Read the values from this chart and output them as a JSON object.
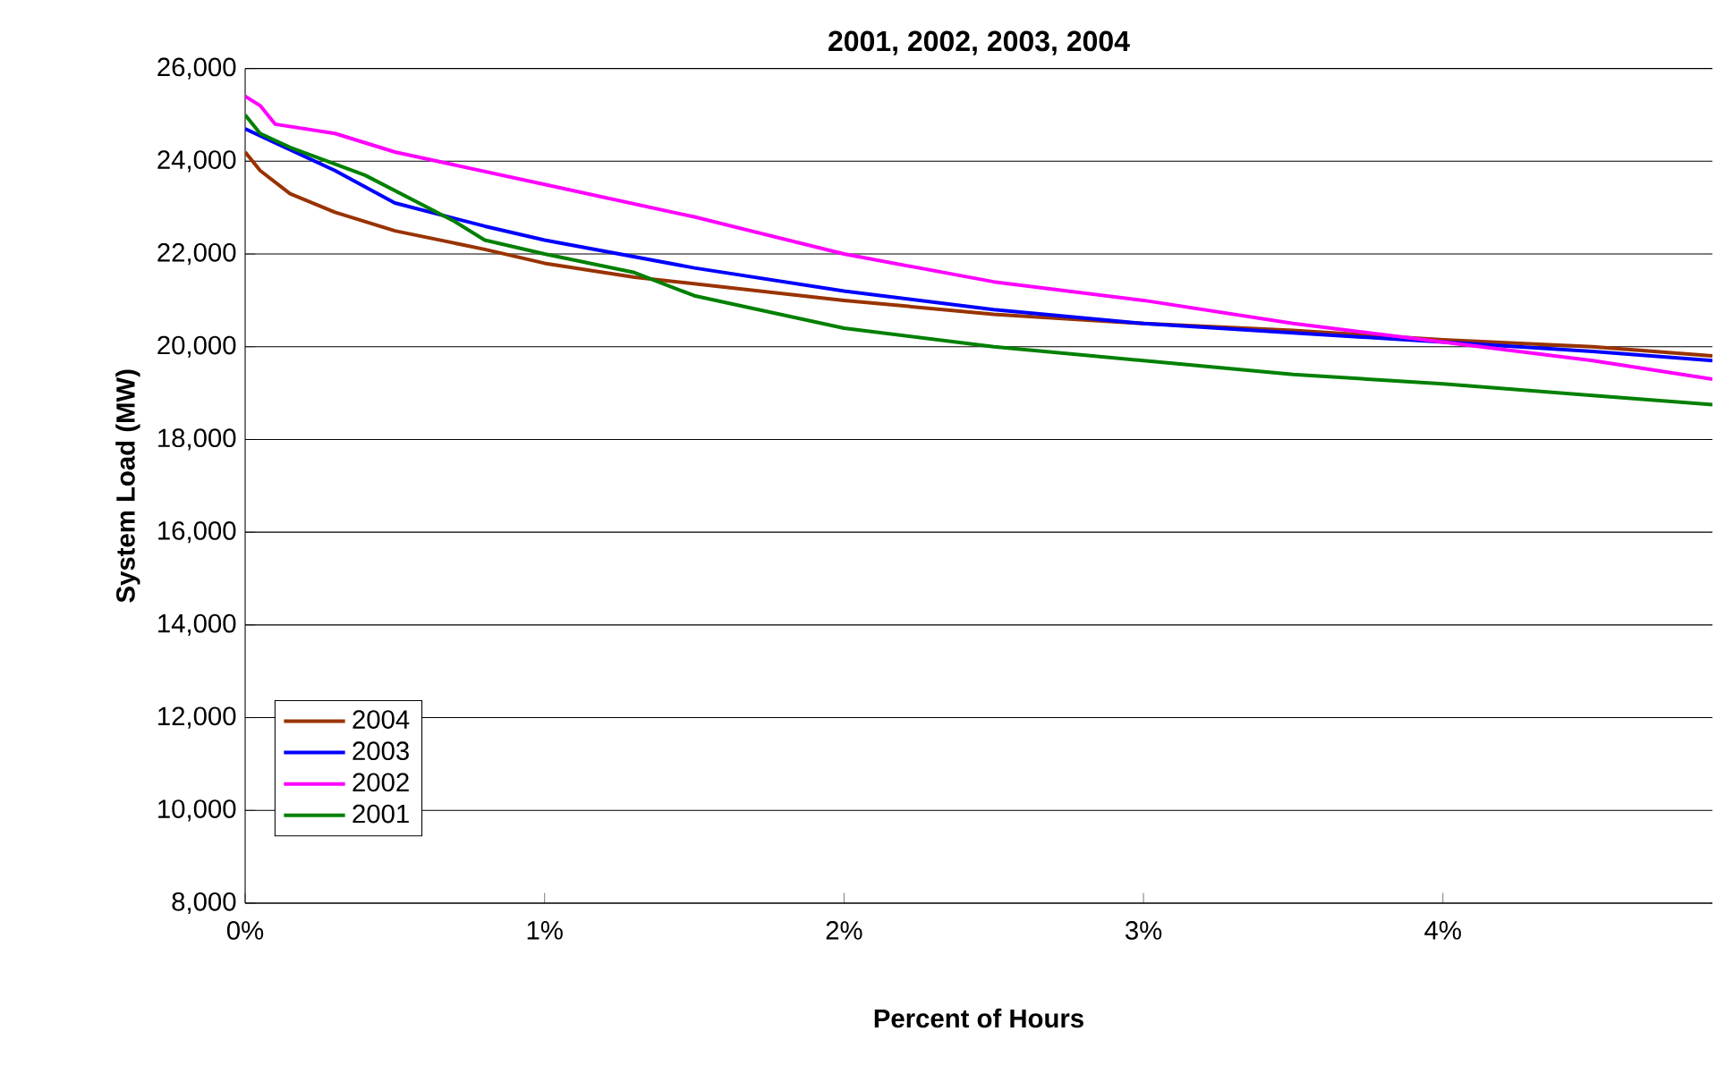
{
  "chart_data": {
    "type": "line",
    "title": "2001, 2002, 2003, 2004",
    "xlabel": "Percent of Hours",
    "ylabel": "System Load (MW)",
    "xlim": [
      0,
      4.9
    ],
    "ylim": [
      8000,
      26000
    ],
    "xticks": [
      {
        "value": 0,
        "label": "0%"
      },
      {
        "value": 1,
        "label": "1%"
      },
      {
        "value": 2,
        "label": "2%"
      },
      {
        "value": 3,
        "label": "3%"
      },
      {
        "value": 4,
        "label": "4%"
      }
    ],
    "yticks": [
      {
        "value": 8000,
        "label": "8,000"
      },
      {
        "value": 10000,
        "label": "10,000"
      },
      {
        "value": 12000,
        "label": "12,000"
      },
      {
        "value": 14000,
        "label": "14,000"
      },
      {
        "value": 16000,
        "label": "16,000"
      },
      {
        "value": 18000,
        "label": "18,000"
      },
      {
        "value": 20000,
        "label": "20,000"
      },
      {
        "value": 22000,
        "label": "22,000"
      },
      {
        "value": 24000,
        "label": "24,000"
      },
      {
        "value": 26000,
        "label": "26,000"
      }
    ],
    "grid": "y",
    "legend": "bottom left",
    "line_style": "solid",
    "series": [
      {
        "name": "2004",
        "color": "#993300",
        "x": [
          0,
          0.05,
          0.15,
          0.3,
          0.5,
          0.8,
          1.0,
          1.3,
          2.0,
          2.5,
          3.0,
          3.5,
          4.0,
          4.5,
          4.9
        ],
        "values": [
          24200,
          23800,
          23300,
          22900,
          22500,
          22100,
          21800,
          21500,
          21000,
          20700,
          20500,
          20350,
          20150,
          20000,
          19800
        ]
      },
      {
        "name": "2003",
        "color": "#0000ff",
        "x": [
          0,
          0.1,
          0.3,
          0.5,
          0.8,
          1.0,
          1.5,
          2.0,
          2.5,
          3.0,
          3.5,
          4.0,
          4.5,
          4.9
        ],
        "values": [
          24700,
          24400,
          23800,
          23100,
          22600,
          22300,
          21700,
          21200,
          20800,
          20500,
          20300,
          20100,
          19900,
          19700
        ]
      },
      {
        "name": "2002",
        "color": "#ff00ff",
        "x": [
          0,
          0.05,
          0.1,
          0.3,
          0.5,
          1.0,
          1.5,
          2.0,
          2.5,
          3.0,
          3.5,
          4.0,
          4.5,
          4.9
        ],
        "values": [
          25400,
          25200,
          24800,
          24600,
          24200,
          23500,
          22800,
          22000,
          21400,
          21000,
          20500,
          20100,
          19700,
          19300
        ]
      },
      {
        "name": "2001",
        "color": "#008000",
        "x": [
          0,
          0.05,
          0.15,
          0.4,
          0.7,
          0.8,
          1.0,
          1.3,
          1.5,
          2.0,
          2.5,
          3.0,
          3.5,
          4.0,
          4.5,
          4.9
        ],
        "values": [
          25000,
          24600,
          24300,
          23700,
          22700,
          22300,
          22000,
          21600,
          21100,
          20400,
          20000,
          19700,
          19400,
          19200,
          18950,
          18750
        ]
      }
    ]
  }
}
